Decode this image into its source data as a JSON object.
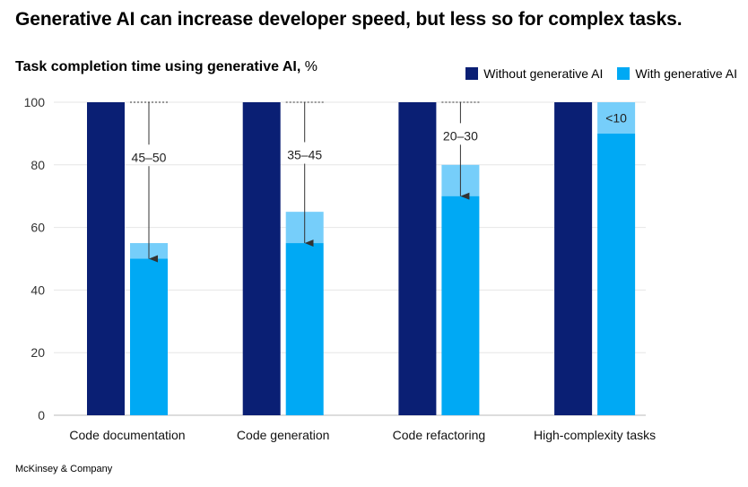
{
  "title": "Generative AI can increase developer speed, but less so for complex tasks.",
  "subtitle": {
    "bold": "Task completion time using generative AI,",
    "unit": " %"
  },
  "source": "McKinsey & Company",
  "colors": {
    "without": "#0a1f74",
    "with": "#00a9f4",
    "range": "#76cefa",
    "grid": "#e6e6e6"
  },
  "chart_data": {
    "type": "bar",
    "title": "Task completion time using generative AI, %",
    "categories": [
      "Code documentation",
      "Code generation",
      "Code refactoring",
      "High-complexity tasks"
    ],
    "ylim": [
      0,
      100
    ],
    "yticks": [
      0,
      20,
      40,
      60,
      80,
      100
    ],
    "grid": true,
    "legend_position": "top-right",
    "series": [
      {
        "name": "Without generative AI",
        "values": [
          100,
          100,
          100,
          100
        ]
      },
      {
        "name": "With generative AI",
        "values": [
          50,
          55,
          70,
          90
        ],
        "range_top": [
          55,
          65,
          80,
          100
        ]
      }
    ],
    "annotations": [
      "45–50",
      "35–45",
      "20–30",
      "<10"
    ]
  }
}
